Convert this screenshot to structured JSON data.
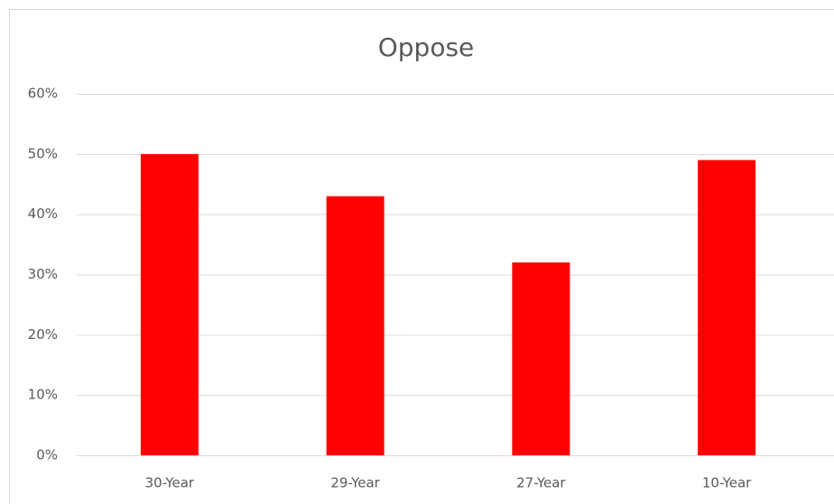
{
  "chart_data": {
    "type": "bar",
    "title": "Oppose",
    "categories": [
      "30-Year",
      "29-Year",
      "27-Year",
      "10-Year"
    ],
    "values": [
      50,
      43,
      32,
      49
    ],
    "color": "#ff0000",
    "ylim": [
      0,
      60
    ],
    "yticks": [
      {
        "value": 0,
        "label": "0%"
      },
      {
        "value": 10,
        "label": "10%"
      },
      {
        "value": 20,
        "label": "20%"
      },
      {
        "value": 30,
        "label": "30%"
      },
      {
        "value": 40,
        "label": "40%"
      },
      {
        "value": 50,
        "label": "50%"
      },
      {
        "value": 60,
        "label": "60%"
      }
    ],
    "grid": true
  }
}
